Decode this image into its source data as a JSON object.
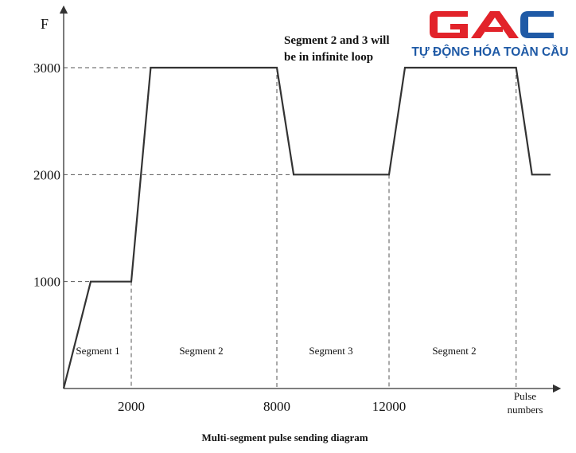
{
  "chart_data": {
    "type": "line",
    "title": "Multi-segment pulse sending diagram",
    "ylabel": "F",
    "xlabel": "Pulse numbers",
    "x_ticks": [
      "2000",
      "8000",
      "12000"
    ],
    "y_ticks": [
      "1000",
      "2000",
      "3000"
    ],
    "annotation": "Segment 2 and 3 will be in infinite loop",
    "annotation_lines": [
      "Segment 2 and 3 will",
      "be in infinite loop"
    ],
    "segments": [
      "Segment 1",
      "Segment 2",
      "Segment 3",
      "Segment 2"
    ],
    "series": [
      {
        "x": [
          0,
          800,
          2000,
          2800,
          8000,
          8600,
          12000,
          12600,
          16800,
          17400,
          18100
        ],
        "y": [
          0,
          1000,
          1000,
          3000,
          3000,
          2000,
          2000,
          3000,
          3000,
          2000,
          2000
        ]
      }
    ],
    "grid": false,
    "legend": "none"
  },
  "logo": {
    "mark": "GAC",
    "tagline": "TỰ ĐỘNG HÓA TOÀN CẦU",
    "colors": {
      "red": "#e2232a",
      "blue": "#1f5aa6"
    }
  }
}
